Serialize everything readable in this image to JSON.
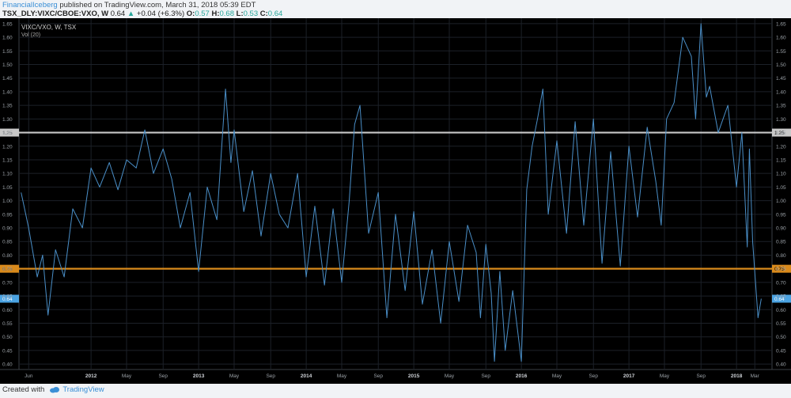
{
  "header": {
    "user": "FinancialIceberg",
    "published_text": "published on TradingView.com, March 31, 2018 05:39 EDT",
    "symbol": "TSX_DLY:VIXC/CBOE:VXO, W",
    "last": "0.64",
    "change": "+0.04 (+6.3%)",
    "o_label": "O:",
    "o_value": "0.57",
    "h_label": "H:",
    "h_value": "0.68",
    "l_label": "L:",
    "l_value": "0.53",
    "c_label": "C:",
    "c_value": "0.64"
  },
  "legend": {
    "series_label": "VIXC/VXO, W, TSX",
    "indicator_label": "Vol (20)"
  },
  "footer": {
    "created_with": "Created with",
    "brand": "TradingView"
  },
  "colors": {
    "background": "#000000",
    "line": "#4a8fc8",
    "grid": "#1c2128",
    "hline_upper": "#c8c8c8",
    "hline_lower": "#d98a1c",
    "price_tag": "#4ba3e2"
  },
  "chart_data": {
    "type": "line",
    "y_ticks": [
      "1.65",
      "1.60",
      "1.55",
      "1.50",
      "1.45",
      "1.40",
      "1.35",
      "1.30",
      "1.25",
      "1.20",
      "1.15",
      "1.10",
      "1.05",
      "1.00",
      "0.95",
      "0.90",
      "0.85",
      "0.80",
      "0.75",
      "0.70",
      "0.65",
      "0.60",
      "0.55",
      "0.50",
      "0.45",
      "0.40"
    ],
    "x_ticks": [
      {
        "label": "Jun",
        "t": 2011.42
      },
      {
        "label": "2012",
        "t": 2012.0
      },
      {
        "label": "May",
        "t": 2012.33
      },
      {
        "label": "Sep",
        "t": 2012.67
      },
      {
        "label": "2013",
        "t": 2013.0
      },
      {
        "label": "May",
        "t": 2013.33
      },
      {
        "label": "Sep",
        "t": 2013.67
      },
      {
        "label": "2014",
        "t": 2014.0
      },
      {
        "label": "May",
        "t": 2014.33
      },
      {
        "label": "Sep",
        "t": 2014.67
      },
      {
        "label": "2015",
        "t": 2015.0
      },
      {
        "label": "May",
        "t": 2015.33
      },
      {
        "label": "Sep",
        "t": 2015.67
      },
      {
        "label": "2016",
        "t": 2016.0
      },
      {
        "label": "May",
        "t": 2016.33
      },
      {
        "label": "Sep",
        "t": 2016.67
      },
      {
        "label": "2017",
        "t": 2017.0
      },
      {
        "label": "May",
        "t": 2017.33
      },
      {
        "label": "Sep",
        "t": 2017.67
      },
      {
        "label": "2018",
        "t": 2018.0
      },
      {
        "label": "Mar",
        "t": 2018.17
      }
    ],
    "hlines": [
      {
        "value": 1.25,
        "label": "1.25",
        "color": "#c8c8c8"
      },
      {
        "value": 0.75,
        "label": "0.75",
        "color": "#d98a1c"
      }
    ],
    "last_value": {
      "value": 0.64,
      "label": "0.64"
    },
    "x_range": [
      2011.33,
      2018.33
    ],
    "ylim": [
      0.38,
      1.67
    ],
    "grid": true,
    "series": [
      {
        "x": [
          2011.35,
          2011.42,
          2011.5,
          2011.55,
          2011.6,
          2011.67,
          2011.75,
          2011.83,
          2011.92,
          2012.0,
          2012.08,
          2012.17,
          2012.25,
          2012.33,
          2012.42,
          2012.5,
          2012.58,
          2012.67,
          2012.75,
          2012.83,
          2012.92,
          2013.0,
          2013.08,
          2013.17,
          2013.25,
          2013.3,
          2013.33,
          2013.42,
          2013.5,
          2013.58,
          2013.67,
          2013.75,
          2013.83,
          2013.92,
          2014.0,
          2014.08,
          2014.17,
          2014.25,
          2014.33,
          2014.4,
          2014.45,
          2014.5,
          2014.58,
          2014.67,
          2014.75,
          2014.83,
          2014.92,
          2015.0,
          2015.08,
          2015.17,
          2015.25,
          2015.33,
          2015.42,
          2015.5,
          2015.58,
          2015.62,
          2015.67,
          2015.72,
          2015.75,
          2015.8,
          2015.85,
          2015.92,
          2016.0,
          2016.05,
          2016.1,
          2016.15,
          2016.2,
          2016.25,
          2016.33,
          2016.42,
          2016.5,
          2016.58,
          2016.67,
          2016.75,
          2016.83,
          2016.92,
          2017.0,
          2017.08,
          2017.17,
          2017.25,
          2017.3,
          2017.35,
          2017.42,
          2017.5,
          2017.58,
          2017.62,
          2017.67,
          2017.72,
          2017.75,
          2017.83,
          2017.92,
          2018.0,
          2018.05,
          2018.1,
          2018.12,
          2018.15,
          2018.2,
          2018.23
        ],
        "y": [
          1.03,
          0.9,
          0.72,
          0.8,
          0.58,
          0.82,
          0.72,
          0.97,
          0.9,
          1.12,
          1.05,
          1.14,
          1.04,
          1.15,
          1.12,
          1.26,
          1.1,
          1.19,
          1.08,
          0.9,
          1.03,
          0.74,
          1.05,
          0.93,
          1.41,
          1.14,
          1.26,
          0.96,
          1.11,
          0.87,
          1.1,
          0.95,
          0.9,
          1.1,
          0.72,
          0.98,
          0.69,
          0.97,
          0.7,
          1.0,
          1.28,
          1.35,
          0.88,
          1.03,
          0.57,
          0.95,
          0.67,
          0.96,
          0.62,
          0.82,
          0.55,
          0.85,
          0.63,
          0.91,
          0.81,
          0.57,
          0.84,
          0.66,
          0.41,
          0.74,
          0.45,
          0.67,
          0.41,
          1.04,
          1.2,
          1.3,
          1.41,
          0.95,
          1.22,
          0.88,
          1.29,
          0.91,
          1.3,
          0.77,
          1.18,
          0.76,
          1.2,
          0.94,
          1.27,
          1.07,
          0.91,
          1.3,
          1.36,
          1.6,
          1.53,
          1.3,
          1.65,
          1.38,
          1.42,
          1.25,
          1.35,
          1.05,
          1.25,
          0.83,
          1.19,
          0.85,
          0.57,
          0.64
        ]
      }
    ]
  }
}
